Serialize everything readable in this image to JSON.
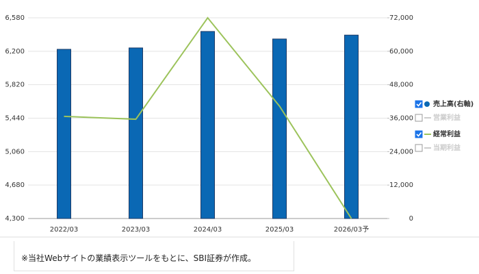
{
  "chart_data": {
    "type": "bar_line",
    "categories": [
      "2022/03",
      "2023/03",
      "2024/03",
      "2025/03",
      "2026/03予"
    ],
    "series": [
      {
        "name": "売上高(右軸)",
        "type": "bar",
        "axis": "y2",
        "color": "#0a68b4",
        "values": [
          60700,
          61200,
          67100,
          64400,
          65800
        ]
      },
      {
        "name": "経常利益",
        "type": "line",
        "color": "#9cc35b",
        "values": [
          5460,
          5428,
          6580,
          5576,
          4300
        ]
      }
    ],
    "hidden_series": [
      {
        "name": "営業利益"
      },
      {
        "name": "当期利益"
      }
    ],
    "ylim": [
      4300,
      6580
    ],
    "yticks": [
      {
        "value": 4300,
        "label": "4,300"
      },
      {
        "value": 4680,
        "label": "4,680"
      },
      {
        "value": 5060,
        "label": "5,060"
      },
      {
        "value": 5440,
        "label": "5,440"
      },
      {
        "value": 5820,
        "label": "5,820"
      },
      {
        "value": 6200,
        "label": "6,200"
      },
      {
        "value": 6580,
        "label": "6,580"
      }
    ],
    "y2lim": [
      0,
      72000
    ],
    "y2ticks": [
      0,
      {
        "value": 12000,
        "label": "12,000"
      },
      {
        "value": 24000,
        "label": "24,000"
      },
      {
        "value": 36000,
        "label": "36,000"
      },
      {
        "value": 48000,
        "label": "48,000"
      },
      {
        "value": 60000,
        "label": "60,000"
      },
      {
        "value": 72000,
        "label": "72,000"
      }
    ],
    "grid": true
  },
  "note": "※当社Webサイトの業績表示ツールをもとに、SBI証券が作成。"
}
